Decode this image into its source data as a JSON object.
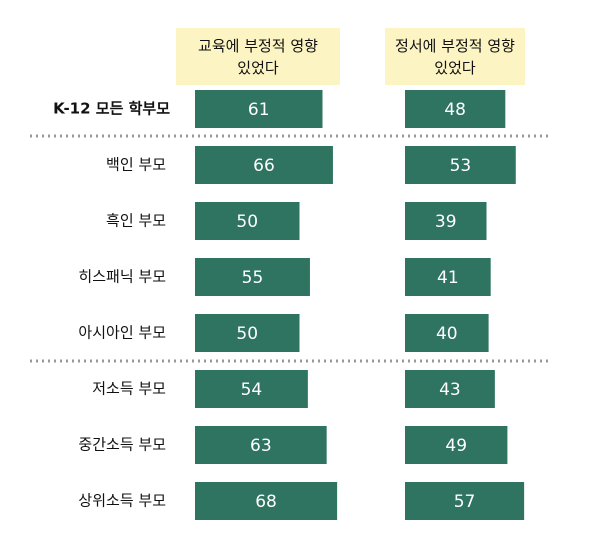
{
  "chart_data": {
    "type": "bar",
    "categories": [
      "K-12 모든 학부모",
      "백인 부모",
      "흑인 부모",
      "히스패닉 부모",
      "아시아인 부모",
      "저소득 부모",
      "중간소득 부모",
      "상위소득 부모"
    ],
    "series": [
      {
        "name": "교육에 부정적 영향 있었다",
        "color": "#2f7361",
        "values": [
          61,
          66,
          50,
          55,
          50,
          54,
          63,
          68
        ]
      },
      {
        "name": "정서에 부정적 영향 있었다",
        "color": "#2f7361",
        "values": [
          48,
          53,
          39,
          41,
          40,
          43,
          49,
          57
        ]
      }
    ]
  }
}
